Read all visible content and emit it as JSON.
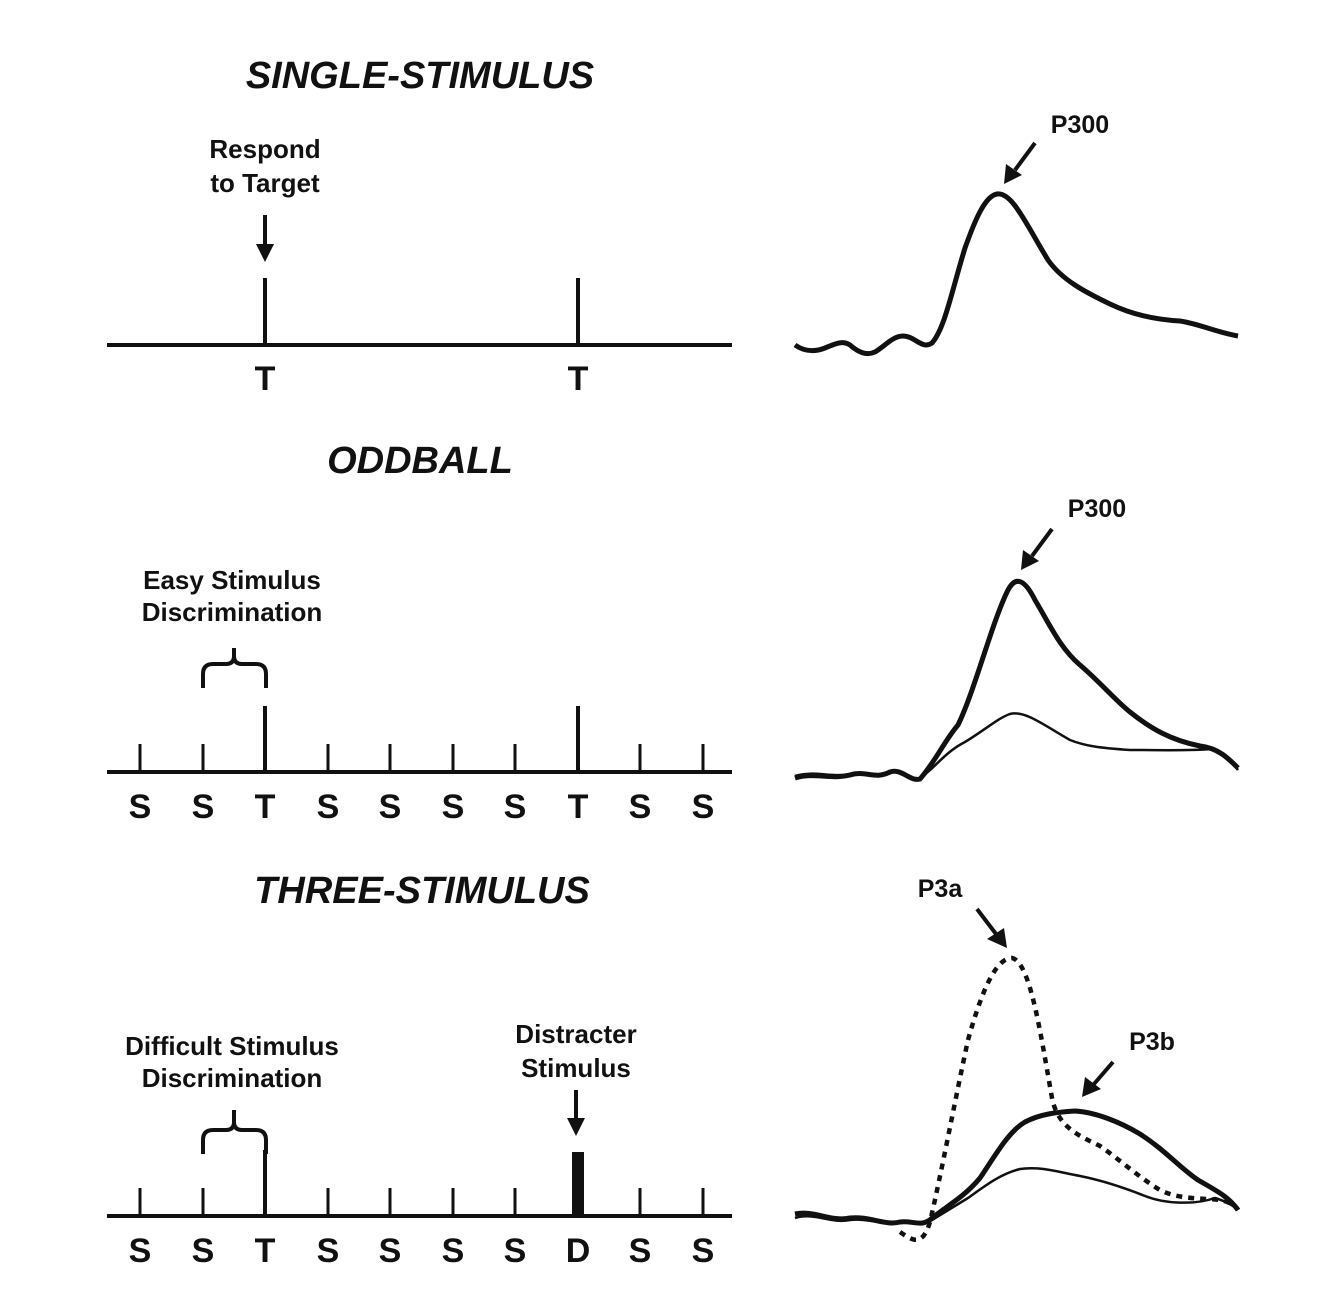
{
  "panels": [
    {
      "id": "single",
      "heading": "SINGLE-STIMULUS",
      "note_lines": [
        "Respond",
        "to Target"
      ],
      "sequence": [
        "T",
        "T"
      ],
      "peak_labels": [
        "P300"
      ]
    },
    {
      "id": "oddball",
      "heading": "ODDBALL",
      "note_lines": [
        "Easy Stimulus",
        "Discrimination"
      ],
      "sequence": [
        "S",
        "S",
        "T",
        "S",
        "S",
        "S",
        "S",
        "T",
        "S",
        "S"
      ],
      "peak_labels": [
        "P300"
      ]
    },
    {
      "id": "three",
      "heading": "THREE-STIMULUS",
      "note_lines": [
        "Difficult Stimulus",
        "Discrimination"
      ],
      "note2_lines": [
        "Distracter",
        "Stimulus"
      ],
      "sequence": [
        "S",
        "S",
        "T",
        "S",
        "S",
        "S",
        "S",
        "D",
        "S",
        "S"
      ],
      "peak_labels": [
        "P3a",
        "P3b"
      ]
    }
  ]
}
